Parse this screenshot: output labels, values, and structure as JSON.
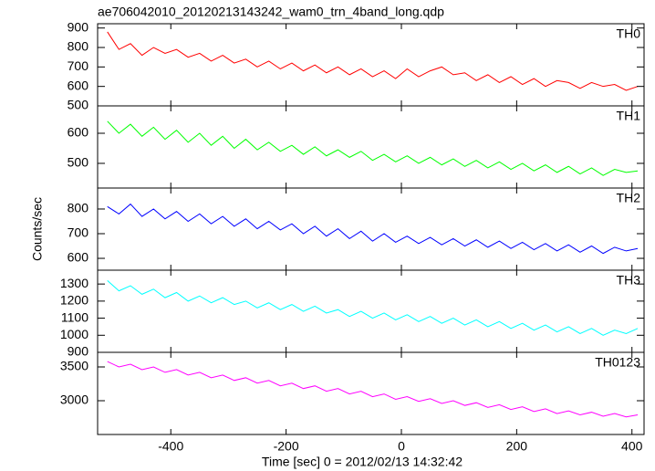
{
  "chart_data": {
    "type": "line",
    "title": "ae706042010_20120213143242_wam0_trn_4band_long.qdp",
    "xlabel": "Time [sec] 0 = 2012/02/13 14:32:42",
    "ylabel": "Counts/sec",
    "x": [
      -510,
      -490,
      -470,
      -450,
      -430,
      -410,
      -390,
      -370,
      -350,
      -330,
      -310,
      -290,
      -270,
      -250,
      -230,
      -210,
      -190,
      -170,
      -150,
      -130,
      -110,
      -90,
      -70,
      -50,
      -30,
      -10,
      10,
      30,
      50,
      70,
      90,
      110,
      130,
      150,
      170,
      190,
      210,
      230,
      250,
      270,
      290,
      310,
      330,
      350,
      370,
      390,
      410
    ],
    "xlim": [
      -527,
      421
    ],
    "xticks": [
      -400,
      -200,
      0,
      200,
      400
    ],
    "panels": [
      {
        "ylim": [
          500,
          922
        ],
        "yticks": [
          500,
          600,
          700,
          800,
          900
        ],
        "series": [
          {
            "name": "TH0",
            "color": "#ff0000",
            "values": [
              880,
              790,
              820,
              760,
              800,
              770,
              790,
              750,
              770,
              730,
              760,
              720,
              740,
              700,
              730,
              690,
              720,
              680,
              710,
              670,
              700,
              660,
              690,
              650,
              680,
              640,
              690,
              650,
              680,
              700,
              660,
              670,
              630,
              660,
              620,
              650,
              610,
              640,
              600,
              630,
              620,
              590,
              620,
              600,
              610,
              580,
              600
            ]
          }
        ]
      },
      {
        "ylim": [
          418,
          691
        ],
        "yticks": [
          500,
          600
        ],
        "series": [
          {
            "name": "TH1",
            "color": "#00ff00",
            "values": [
              640,
              600,
              630,
              590,
              620,
              580,
              610,
              570,
              600,
              560,
              590,
              550,
              580,
              545,
              570,
              540,
              560,
              530,
              555,
              525,
              545,
              520,
              540,
              510,
              530,
              505,
              525,
              500,
              520,
              495,
              515,
              490,
              510,
              485,
              505,
              480,
              500,
              475,
              495,
              470,
              490,
              465,
              485,
              460,
              480,
              470,
              475
            ]
          }
        ]
      },
      {
        "ylim": [
          552,
          885
        ],
        "yticks": [
          600,
          700,
          800
        ],
        "series": [
          {
            "name": "TH2",
            "color": "#0000ff",
            "values": [
              810,
              780,
              820,
              770,
              800,
              760,
              790,
              750,
              780,
              740,
              770,
              730,
              760,
              720,
              750,
              715,
              740,
              700,
              730,
              690,
              720,
              680,
              710,
              670,
              700,
              665,
              690,
              660,
              685,
              655,
              680,
              650,
              675,
              645,
              670,
              640,
              665,
              635,
              660,
              630,
              655,
              625,
              650,
              620,
              645,
              630,
              640
            ]
          }
        ]
      },
      {
        "ylim": [
          900,
          1381
        ],
        "yticks": [
          900,
          1000,
          1100,
          1200,
          1300
        ],
        "series": [
          {
            "name": "TH3",
            "color": "#00ffff",
            "values": [
              1320,
              1260,
              1290,
              1240,
              1270,
              1220,
              1250,
              1200,
              1230,
              1190,
              1220,
              1180,
              1200,
              1160,
              1190,
              1150,
              1180,
              1140,
              1170,
              1130,
              1150,
              1110,
              1140,
              1100,
              1130,
              1090,
              1120,
              1080,
              1110,
              1070,
              1100,
              1060,
              1090,
              1050,
              1080,
              1040,
              1070,
              1030,
              1060,
              1020,
              1050,
              1010,
              1040,
              1000,
              1030,
              1010,
              1040
            ]
          }
        ]
      },
      {
        "ylim": [
          2500,
          3716
        ],
        "yticks": [
          3000,
          3500
        ],
        "series": [
          {
            "name": "TH0123",
            "color": "#ff00ff",
            "values": [
              3580,
              3500,
              3540,
              3460,
              3500,
              3420,
              3460,
              3380,
              3420,
              3340,
              3380,
              3300,
              3340,
              3260,
              3300,
              3220,
              3260,
              3180,
              3220,
              3140,
              3180,
              3100,
              3140,
              3060,
              3100,
              3020,
              3060,
              2990,
              3030,
              2960,
              3000,
              2930,
              2970,
              2900,
              2940,
              2870,
              2910,
              2840,
              2880,
              2810,
              2850,
              2790,
              2830,
              2770,
              2810,
              2760,
              2790
            ]
          }
        ]
      }
    ]
  }
}
